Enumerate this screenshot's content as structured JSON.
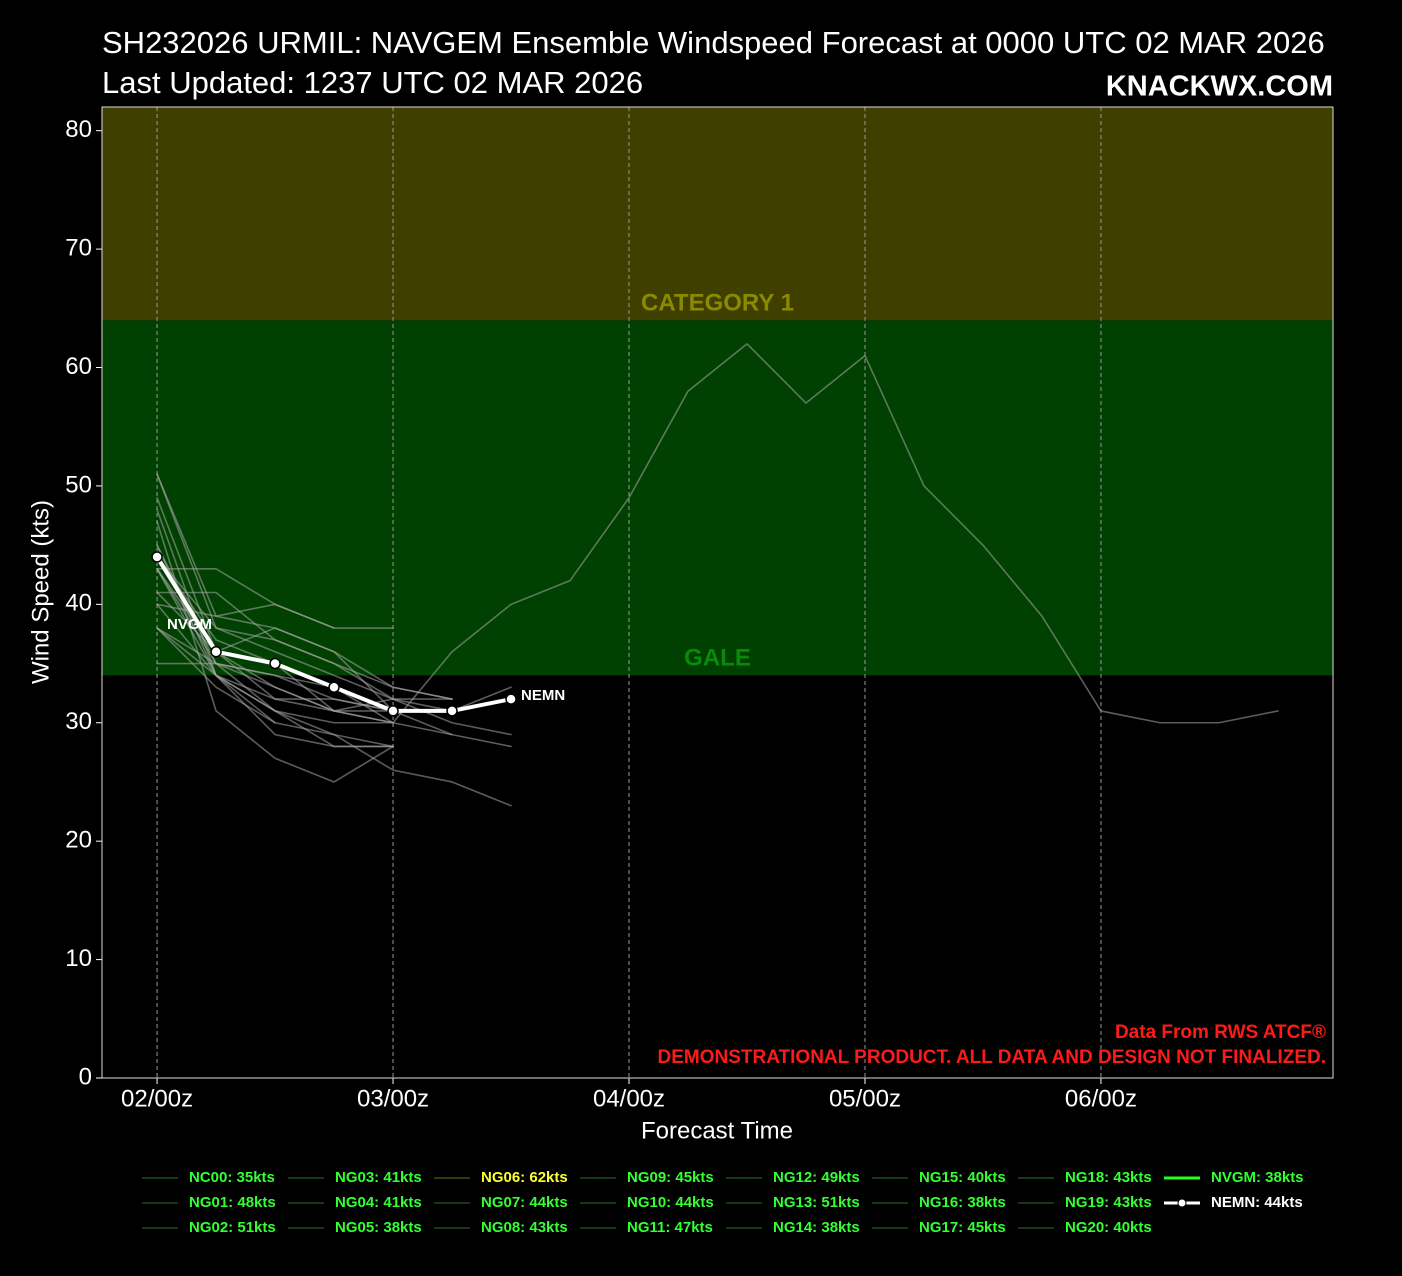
{
  "chart_data": {
    "type": "line",
    "title": "SH232026 URMIL: NAVGEM Ensemble Windspeed Forecast at 0000 UTC 02 MAR 2026",
    "subtitle": "Last Updated: 1237 UTC 02 MAR 2026",
    "brand": "KNACKWX.COM",
    "x_label": "Forecast Time",
    "y_label": "Wind Speed (kts)",
    "annotations": [
      "Data From RWS ATCF®",
      "DEMONSTRATIONAL PRODUCT. ALL DATA AND DESIGN NOT FINALIZED."
    ],
    "annotation_color": "#ff1a1a",
    "xlim": [
      -5.6,
      119.6
    ],
    "xticks": [
      {
        "value": 0,
        "label": "02/00z"
      },
      {
        "value": 24,
        "label": "03/00z"
      },
      {
        "value": 48,
        "label": "04/00z"
      },
      {
        "value": 72,
        "label": "05/00z"
      },
      {
        "value": 96,
        "label": "06/00z"
      }
    ],
    "ylim": [
      0,
      82
    ],
    "yticks": [
      0,
      10,
      20,
      30,
      40,
      50,
      60,
      70,
      80
    ],
    "grid": "x",
    "bands": [
      {
        "name": "GALE",
        "from": 34,
        "to": 64,
        "color": "#004000",
        "text_color": "#0a8a0a"
      },
      {
        "name": "CATEGORY 1",
        "from": 64,
        "to": 82,
        "color": "#3f3f00",
        "text_color": "#8a8a00"
      }
    ],
    "x": [
      0,
      6,
      12,
      18,
      24,
      30,
      36,
      42,
      48,
      54,
      60,
      66,
      72,
      78,
      84,
      90,
      96,
      102,
      108,
      114
    ],
    "series": [
      {
        "name": "NC00: 35kts",
        "color": "#1c4a1c",
        "text_color": "#33ff33",
        "line_color": "#a8a8a8",
        "values": [
          35,
          35,
          34,
          32,
          31,
          null,
          null,
          null,
          null,
          null,
          null,
          null,
          null,
          null,
          null,
          null,
          null,
          null,
          null,
          null
        ]
      },
      {
        "name": "NG01: 48kts",
        "color": "#1c4a1c",
        "text_color": "#33ff33",
        "line_color": "#a8a8a8",
        "values": [
          48,
          34,
          32,
          31,
          31,
          29,
          28,
          null,
          null,
          null,
          null,
          null,
          null,
          null,
          null,
          null,
          null,
          null,
          null,
          null
        ]
      },
      {
        "name": "NG02: 51kts",
        "color": "#1c4a1c",
        "text_color": "#33ff33",
        "line_color": "#a8a8a8",
        "values": [
          51,
          39,
          40,
          38,
          null,
          null,
          null,
          null,
          null,
          null,
          null,
          null,
          null,
          null,
          null,
          null,
          null,
          null,
          null,
          null
        ]
      },
      {
        "name": "NG03: 41kts",
        "color": "#1c4a1c",
        "text_color": "#33ff33",
        "line_color": "#a8a8a8",
        "values": [
          41,
          36,
          33,
          31,
          30,
          null,
          null,
          null,
          null,
          null,
          null,
          null,
          null,
          null,
          null,
          null,
          null,
          null,
          null,
          null
        ]
      },
      {
        "name": "NG04: 41kts",
        "color": "#1c4a1c",
        "text_color": "#33ff33",
        "line_color": "#a8a8a8",
        "values": [
          41,
          41,
          37,
          35,
          33,
          32,
          null,
          null,
          null,
          null,
          null,
          null,
          null,
          null,
          null,
          null,
          null,
          null,
          null,
          null
        ]
      },
      {
        "name": "NG05: 38kts",
        "color": "#1c4a1c",
        "text_color": "#33ff33",
        "line_color": "#a8a8a8",
        "values": [
          38,
          34,
          31,
          28,
          28,
          null,
          null,
          null,
          null,
          null,
          null,
          null,
          null,
          null,
          null,
          null,
          null,
          null,
          null,
          null
        ]
      },
      {
        "name": "NG06: 62kts",
        "color": "#4a4a10",
        "text_color": "#ffff33",
        "line_color": "#a8a8a8",
        "values": [
          43,
          35,
          33,
          31,
          30,
          36,
          40,
          42,
          49,
          58,
          62,
          57,
          61,
          50,
          45,
          39,
          31,
          30,
          30,
          31
        ]
      },
      {
        "name": "NG07: 44kts",
        "color": "#1c4a1c",
        "text_color": "#33ff33",
        "line_color": "#a8a8a8",
        "values": [
          44,
          37,
          35,
          31,
          32,
          30,
          29,
          null,
          null,
          null,
          null,
          null,
          null,
          null,
          null,
          null,
          null,
          null,
          null,
          null
        ]
      },
      {
        "name": "NG08: 43kts",
        "color": "#1c4a1c",
        "text_color": "#33ff33",
        "line_color": "#a8a8a8",
        "values": [
          43,
          43,
          40,
          38,
          38,
          null,
          null,
          null,
          null,
          null,
          null,
          null,
          null,
          null,
          null,
          null,
          null,
          null,
          null,
          null
        ]
      },
      {
        "name": "NG09: 45kts",
        "color": "#1c4a1c",
        "text_color": "#33ff33",
        "line_color": "#a8a8a8",
        "values": [
          45,
          34,
          29,
          28,
          28,
          null,
          null,
          null,
          null,
          null,
          null,
          null,
          null,
          null,
          null,
          null,
          null,
          null,
          null,
          null
        ]
      },
      {
        "name": "NG10: 44kts",
        "color": "#1c4a1c",
        "text_color": "#33ff33",
        "line_color": "#a8a8a8",
        "values": [
          44,
          38,
          36,
          34,
          32,
          32,
          null,
          null,
          null,
          null,
          null,
          null,
          null,
          null,
          null,
          null,
          null,
          null,
          null,
          null
        ]
      },
      {
        "name": "NG11: 47kts",
        "color": "#1c4a1c",
        "text_color": "#33ff33",
        "line_color": "#a8a8a8",
        "values": [
          47,
          31,
          27,
          25,
          28,
          null,
          null,
          null,
          null,
          null,
          null,
          null,
          null,
          null,
          null,
          null,
          null,
          null,
          null,
          null
        ]
      },
      {
        "name": "NG12: 49kts",
        "color": "#1c4a1c",
        "text_color": "#33ff33",
        "line_color": "#a8a8a8",
        "values": [
          49,
          36,
          38,
          36,
          33,
          32,
          null,
          null,
          null,
          null,
          null,
          null,
          null,
          null,
          null,
          null,
          null,
          null,
          null,
          null
        ]
      },
      {
        "name": "NG13: 51kts",
        "color": "#1c4a1c",
        "text_color": "#33ff33",
        "line_color": "#a8a8a8",
        "values": [
          51,
          38,
          37,
          35,
          32,
          31,
          33,
          null,
          null,
          null,
          null,
          null,
          null,
          null,
          null,
          null,
          null,
          null,
          null,
          null
        ]
      },
      {
        "name": "NG14: 38kts",
        "color": "#1c4a1c",
        "text_color": "#33ff33",
        "line_color": "#a8a8a8",
        "values": [
          38,
          33,
          30,
          29,
          28,
          null,
          null,
          null,
          null,
          null,
          null,
          null,
          null,
          null,
          null,
          null,
          null,
          null,
          null,
          null
        ]
      },
      {
        "name": "NG15: 40kts",
        "color": "#1c4a1c",
        "text_color": "#33ff33",
        "line_color": "#a8a8a8",
        "values": [
          40,
          39,
          38,
          36,
          31,
          null,
          null,
          null,
          null,
          null,
          null,
          null,
          null,
          null,
          null,
          null,
          null,
          null,
          null,
          null
        ]
      },
      {
        "name": "NG16: 38kts",
        "color": "#1c4a1c",
        "text_color": "#33ff33",
        "line_color": "#a8a8a8",
        "values": [
          38,
          35,
          31,
          30,
          30,
          null,
          null,
          null,
          null,
          null,
          null,
          null,
          null,
          null,
          null,
          null,
          null,
          null,
          null,
          null
        ]
      },
      {
        "name": "NG17: 45kts",
        "color": "#1c4a1c",
        "text_color": "#33ff33",
        "line_color": "#a8a8a8",
        "values": [
          45,
          35,
          34,
          33,
          30,
          29,
          null,
          null,
          null,
          null,
          null,
          null,
          null,
          null,
          null,
          null,
          null,
          null,
          null,
          null
        ]
      },
      {
        "name": "NG18: 43kts",
        "color": "#1c4a1c",
        "text_color": "#33ff33",
        "line_color": "#a8a8a8",
        "values": [
          43,
          36,
          32,
          32,
          31,
          null,
          null,
          null,
          null,
          null,
          null,
          null,
          null,
          null,
          null,
          null,
          null,
          null,
          null,
          null
        ]
      },
      {
        "name": "NG19: 43kts",
        "color": "#1c4a1c",
        "text_color": "#33ff33",
        "line_color": "#a8a8a8",
        "values": [
          43,
          34,
          31,
          29,
          26,
          25,
          23,
          null,
          null,
          null,
          null,
          null,
          null,
          null,
          null,
          null,
          null,
          null,
          null,
          null
        ]
      },
      {
        "name": "NG20: 40kts",
        "color": "#1c4a1c",
        "text_color": "#33ff33",
        "line_color": "#a8a8a8",
        "values": [
          40,
          34,
          30,
          null,
          null,
          null,
          null,
          null,
          null,
          null,
          null,
          null,
          null,
          null,
          null,
          null,
          null,
          null,
          null,
          null
        ]
      },
      {
        "name": "NVGM: 38kts",
        "label": "NVGM",
        "color": "#22ff22",
        "text_color": "#33ff33",
        "line_color": "#22ff22",
        "values": [
          38,
          null,
          null,
          null,
          null,
          null,
          null,
          null,
          null,
          null,
          null,
          null,
          null,
          null,
          null,
          null,
          null,
          null,
          null,
          null
        ]
      },
      {
        "name": "NEMN: 44kts",
        "label": "NEMN",
        "color": "#ffffff",
        "text_color": "#ffffff",
        "line_color": "#ffffff",
        "marker": true,
        "values": [
          44,
          36,
          35,
          33,
          31,
          31,
          32,
          null,
          null,
          null,
          null,
          null,
          null,
          null,
          null,
          null,
          null,
          null,
          null,
          null
        ]
      }
    ]
  }
}
